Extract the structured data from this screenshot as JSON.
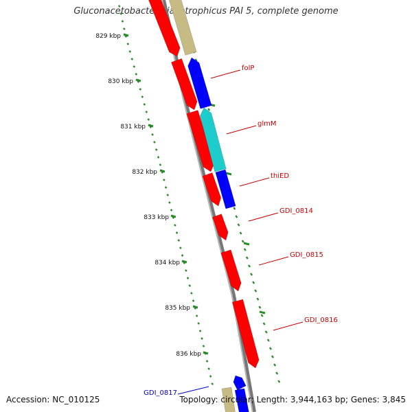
{
  "title": "Gluconacetobacter diazotrophicus PAI 5, complete genome",
  "footer": {
    "accession": "Accession: NC_010125",
    "topology": "Topology: circular; Length: 3,944,163 bp; Genes: 3,845"
  },
  "colors": {
    "red": "#ff0000",
    "blue": "#0000ff",
    "cyan": "#1fcccc",
    "tan": "#c7bb85",
    "ruler": "#2a8a2a",
    "backbone": "#777777",
    "label_red": "#cc0000",
    "label_blue": "#0000cc"
  },
  "ruler": {
    "labels": [
      "829 kbp",
      "830 kbp",
      "831 kbp",
      "832 kbp",
      "833 kbp",
      "834 kbp",
      "835 kbp",
      "836 kbp"
    ]
  },
  "genes": [
    {
      "name": "folP",
      "color": "red"
    },
    {
      "name": "glmM",
      "color": "cyan"
    },
    {
      "name": "thiED",
      "color": "blue"
    },
    {
      "name": "GDI_0814",
      "color": "red"
    },
    {
      "name": "GDI_0815",
      "color": "red"
    },
    {
      "name": "GDI_0816",
      "color": "red"
    },
    {
      "name": "GDI_0817",
      "color": "blue"
    }
  ]
}
